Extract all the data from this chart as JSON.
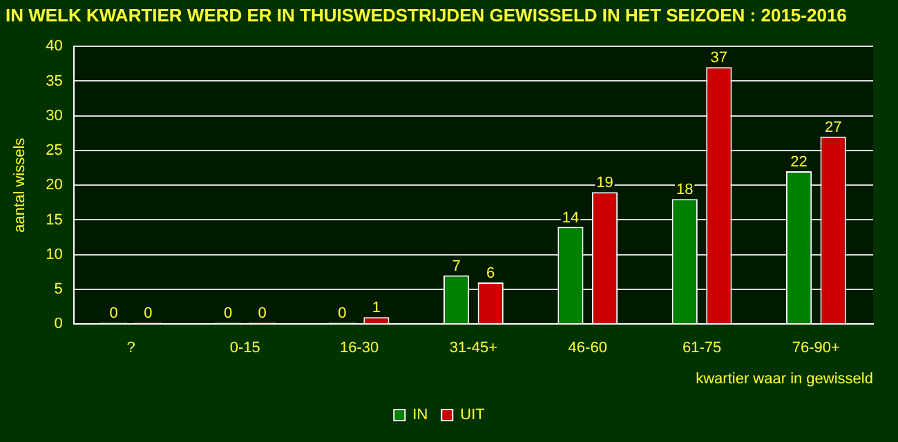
{
  "chart_data": {
    "type": "bar",
    "title": "IN WELK KWARTIER WERD ER IN THUISWEDSTRIJDEN GEWISSELD IN HET SEIZOEN : 2015-2016",
    "xlabel": "kwartier waar in gewisseld",
    "ylabel": "aantal wissels",
    "categories": [
      "?",
      "0-15",
      "16-30",
      "31-45+",
      "46-60",
      "61-75",
      "76-90+"
    ],
    "series": [
      {
        "name": "IN",
        "color": "#008000",
        "values": [
          0,
          0,
          0,
          7,
          14,
          18,
          22
        ]
      },
      {
        "name": "UIT",
        "color": "#cc0000",
        "values": [
          0,
          0,
          1,
          6,
          19,
          37,
          27
        ]
      }
    ],
    "ylim": [
      0,
      40
    ],
    "yticks": [
      0,
      5,
      10,
      15,
      20,
      25,
      30,
      35,
      40
    ],
    "grid": "y",
    "legend": "bottom",
    "data_labels": true
  }
}
